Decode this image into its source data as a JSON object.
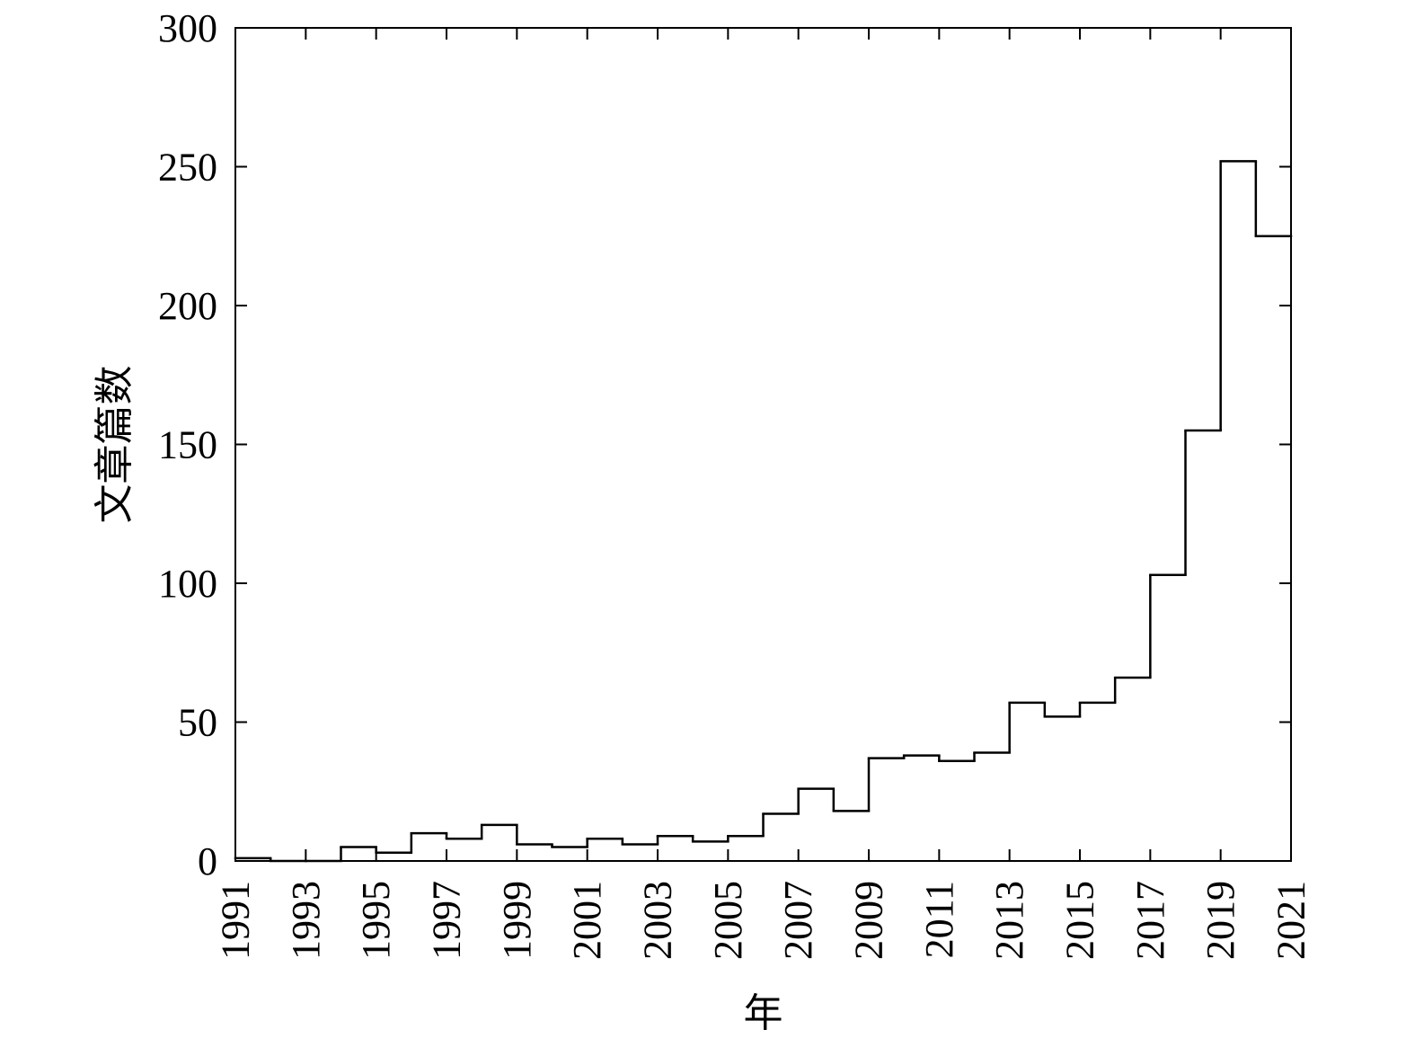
{
  "chart_data": {
    "type": "step",
    "title": "",
    "xlabel": "年",
    "ylabel": "文章篇数",
    "xlim": [
      1991,
      2021
    ],
    "ylim": [
      0,
      300
    ],
    "x_ticks": [
      1991,
      1993,
      1995,
      1997,
      1999,
      2001,
      2003,
      2005,
      2007,
      2009,
      2011,
      2013,
      2015,
      2017,
      2019,
      2021
    ],
    "y_ticks": [
      0,
      50,
      100,
      150,
      200,
      250,
      300
    ],
    "grid": false,
    "legend": "none",
    "bins": [
      {
        "start": 1991,
        "end": 1992,
        "value": 1
      },
      {
        "start": 1992,
        "end": 1993,
        "value": 0
      },
      {
        "start": 1993,
        "end": 1994,
        "value": 0
      },
      {
        "start": 1994,
        "end": 1995,
        "value": 5
      },
      {
        "start": 1995,
        "end": 1996,
        "value": 3
      },
      {
        "start": 1996,
        "end": 1997,
        "value": 10
      },
      {
        "start": 1997,
        "end": 1998,
        "value": 8
      },
      {
        "start": 1998,
        "end": 1999,
        "value": 13
      },
      {
        "start": 1999,
        "end": 2000,
        "value": 6
      },
      {
        "start": 2000,
        "end": 2001,
        "value": 5
      },
      {
        "start": 2001,
        "end": 2002,
        "value": 8
      },
      {
        "start": 2002,
        "end": 2003,
        "value": 6
      },
      {
        "start": 2003,
        "end": 2004,
        "value": 9
      },
      {
        "start": 2004,
        "end": 2005,
        "value": 7
      },
      {
        "start": 2005,
        "end": 2006,
        "value": 9
      },
      {
        "start": 2006,
        "end": 2007,
        "value": 17
      },
      {
        "start": 2007,
        "end": 2008,
        "value": 26
      },
      {
        "start": 2008,
        "end": 2009,
        "value": 18
      },
      {
        "start": 2009,
        "end": 2010,
        "value": 37
      },
      {
        "start": 2010,
        "end": 2011,
        "value": 38
      },
      {
        "start": 2011,
        "end": 2012,
        "value": 36
      },
      {
        "start": 2012,
        "end": 2013,
        "value": 39
      },
      {
        "start": 2013,
        "end": 2014,
        "value": 57
      },
      {
        "start": 2014,
        "end": 2015,
        "value": 52
      },
      {
        "start": 2015,
        "end": 2016,
        "value": 57
      },
      {
        "start": 2016,
        "end": 2017,
        "value": 66
      },
      {
        "start": 2017,
        "end": 2018,
        "value": 103
      },
      {
        "start": 2018,
        "end": 2019,
        "value": 155
      },
      {
        "start": 2019,
        "end": 2020,
        "value": 252
      },
      {
        "start": 2020,
        "end": 2021,
        "value": 225
      }
    ],
    "line_color": "#000000"
  }
}
